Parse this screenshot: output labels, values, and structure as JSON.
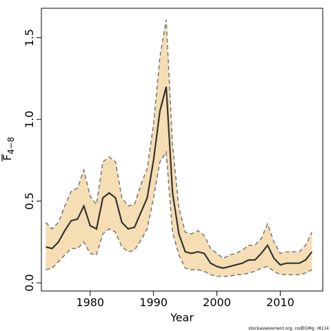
{
  "chart_data": {
    "type": "area",
    "xlabel": "Year",
    "ylabel_main": "F",
    "ylabel_sub": "4−8",
    "xlim": [
      1972.3,
      2016.7
    ],
    "ylim": [
      -0.05,
      1.68
    ],
    "xticks": [
      1980,
      1990,
      2000,
      2010
    ],
    "yticks": [
      0.0,
      0.5,
      1.0,
      1.5
    ],
    "ytick_labels": [
      "0.0",
      "0.5",
      "1.0",
      "1.5"
    ],
    "grid": false,
    "x": [
      1973,
      1974,
      1975,
      1976,
      1977,
      1978,
      1979,
      1980,
      1981,
      1982,
      1983,
      1984,
      1985,
      1986,
      1987,
      1988,
      1989,
      1990,
      1991,
      1992,
      1993,
      1994,
      1995,
      1996,
      1997,
      1998,
      1999,
      2000,
      2001,
      2002,
      2003,
      2004,
      2005,
      2006,
      2007,
      2008,
      2009,
      2010,
      2011,
      2012,
      2013,
      2014,
      2015
    ],
    "series": [
      {
        "role": "estimate",
        "values": [
          0.22,
          0.21,
          0.25,
          0.32,
          0.38,
          0.39,
          0.47,
          0.35,
          0.33,
          0.52,
          0.55,
          0.52,
          0.37,
          0.33,
          0.34,
          0.43,
          0.52,
          0.75,
          1.05,
          1.2,
          0.55,
          0.3,
          0.19,
          0.18,
          0.19,
          0.18,
          0.12,
          0.1,
          0.09,
          0.1,
          0.11,
          0.12,
          0.14,
          0.14,
          0.18,
          0.23,
          0.15,
          0.11,
          0.12,
          0.12,
          0.12,
          0.14,
          0.19
        ]
      },
      {
        "role": "upper",
        "values": [
          0.37,
          0.33,
          0.37,
          0.47,
          0.56,
          0.58,
          0.69,
          0.53,
          0.48,
          0.74,
          0.77,
          0.74,
          0.52,
          0.47,
          0.48,
          0.6,
          0.7,
          0.97,
          1.38,
          1.61,
          0.84,
          0.46,
          0.31,
          0.3,
          0.32,
          0.29,
          0.21,
          0.18,
          0.15,
          0.17,
          0.18,
          0.2,
          0.23,
          0.23,
          0.27,
          0.36,
          0.25,
          0.18,
          0.19,
          0.19,
          0.19,
          0.23,
          0.31
        ]
      },
      {
        "role": "lower",
        "values": [
          0.08,
          0.09,
          0.13,
          0.17,
          0.21,
          0.21,
          0.25,
          0.18,
          0.17,
          0.3,
          0.33,
          0.31,
          0.22,
          0.19,
          0.2,
          0.26,
          0.33,
          0.52,
          0.74,
          0.8,
          0.31,
          0.17,
          0.09,
          0.08,
          0.08,
          0.07,
          0.05,
          0.04,
          0.04,
          0.04,
          0.05,
          0.05,
          0.06,
          0.07,
          0.09,
          0.1,
          0.07,
          0.05,
          0.05,
          0.05,
          0.05,
          0.06,
          0.08
        ]
      }
    ],
    "band_color": "#f5deb3",
    "band_edge_color": "#7a7a7a",
    "line_color": "#333333"
  },
  "footer": {
    "credit": "stockassessment.org, codEGMg, r8114"
  }
}
